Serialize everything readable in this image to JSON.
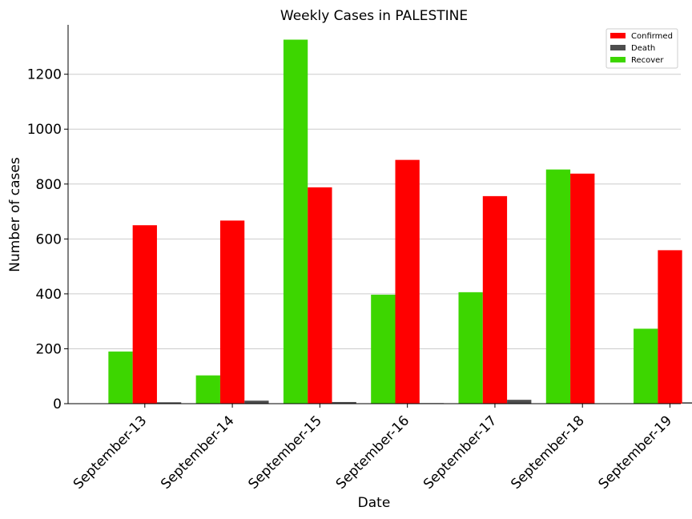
{
  "chart_data": {
    "type": "bar",
    "title": "Weekly Cases in PALESTINE",
    "xlabel": "Date",
    "ylabel": "Number of cases",
    "categories": [
      "September-13",
      "September-14",
      "September-15",
      "September-16",
      "September-17",
      "September-18",
      "September-19"
    ],
    "series": [
      {
        "name": "Recover",
        "color": "#3dd600",
        "values": [
          190,
          103,
          1326,
          397,
          406,
          853,
          273
        ]
      },
      {
        "name": "Confirmed",
        "color": "#ff0000",
        "values": [
          650,
          667,
          788,
          888,
          756,
          838,
          559
        ]
      },
      {
        "name": "Death",
        "color": "#4d4d4d",
        "values": [
          5,
          11,
          6,
          2,
          14,
          0,
          5
        ]
      }
    ],
    "legend_order": [
      "Confirmed",
      "Death",
      "Recover"
    ],
    "ylim": [
      0,
      1380
    ],
    "yticks": [
      0,
      200,
      400,
      600,
      800,
      1000,
      1200
    ],
    "grid": "horizontal",
    "legend_position": "top-right"
  }
}
